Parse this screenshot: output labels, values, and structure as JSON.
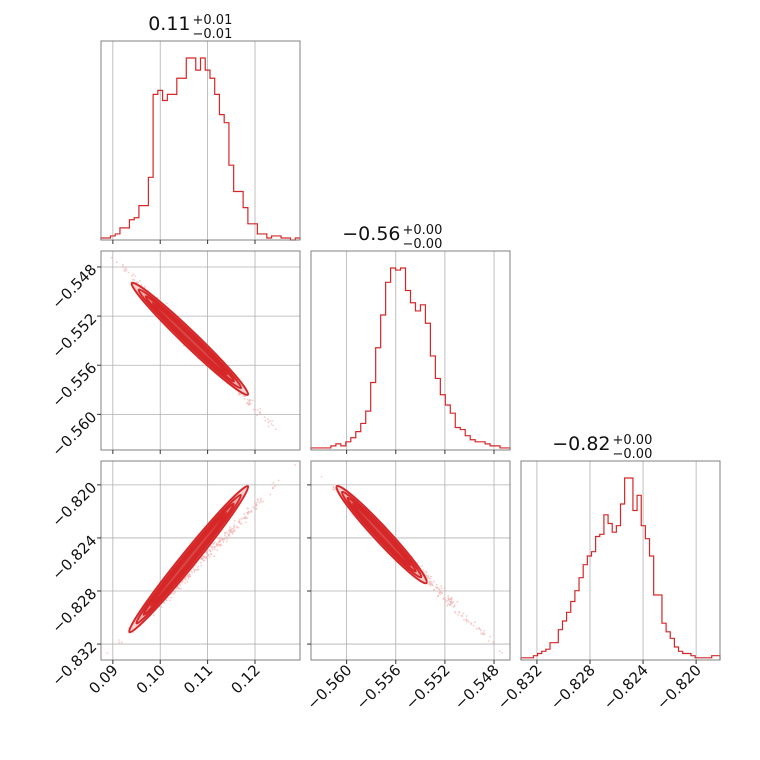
{
  "colors": {
    "main": "#d62728",
    "light": "#f2b6b6",
    "grid": "#b0b0b0",
    "frame": "#808080",
    "text": "#111111"
  },
  "chart_data": {
    "type": "corner",
    "parameters": [
      {
        "title_main": "0.11",
        "title_sup": "+0.01",
        "title_sub": "−0.01",
        "range": [
          0.0875,
          0.1295
        ],
        "ticks": [
          0.09,
          0.1,
          0.11,
          0.12
        ],
        "tick_labels": [
          "0.09",
          "0.10",
          "0.11",
          "0.12"
        ]
      },
      {
        "title_main": "−0.56",
        "title_sup": "+0.00",
        "title_sub": "−0.00",
        "range": [
          -0.5629,
          -0.5467
        ],
        "ticks": [
          -0.56,
          -0.556,
          -0.552,
          -0.548
        ],
        "tick_labels": [
          "−0.560",
          "−0.556",
          "−0.552",
          "−0.548"
        ]
      },
      {
        "title_main": "−0.82",
        "title_sup": "+0.00",
        "title_sub": "−0.00",
        "range": [
          -0.8332,
          -0.8182
        ],
        "ticks": [
          -0.832,
          -0.828,
          -0.824,
          -0.82
        ],
        "tick_labels": [
          "−0.832",
          "−0.828",
          "−0.824",
          "−0.820"
        ]
      }
    ],
    "histograms": [
      {
        "param": 0,
        "counts": [
          1,
          1,
          2,
          3,
          6,
          6,
          10,
          11,
          17,
          17,
          31,
          72,
          74,
          69,
          72,
          72,
          80,
          80,
          90,
          90,
          84,
          90,
          84,
          80,
          72,
          62,
          58,
          37,
          24,
          24,
          16,
          8,
          8,
          3,
          3,
          1,
          2,
          2,
          1,
          1,
          0,
          1
        ]
      },
      {
        "param": 1,
        "counts": [
          1,
          1,
          1,
          1,
          2,
          3,
          2,
          4,
          6,
          9,
          13,
          19,
          33,
          50,
          66,
          82,
          89,
          88,
          89,
          78,
          72,
          68,
          71,
          62,
          46,
          35,
          27,
          22,
          18,
          11,
          10,
          7,
          5,
          4,
          4,
          3,
          2,
          2,
          1,
          1
        ]
      },
      {
        "param": 2,
        "counts": [
          1,
          1,
          1,
          2,
          3,
          4,
          5,
          8,
          8,
          14,
          18,
          22,
          27,
          32,
          38,
          44,
          48,
          50,
          57,
          58,
          67,
          63,
          59,
          62,
          72,
          84,
          84,
          69,
          76,
          62,
          56,
          48,
          30,
          30,
          17,
          13,
          10,
          6,
          4,
          3,
          3,
          2,
          1,
          1,
          1,
          1,
          2,
          2
        ]
      }
    ],
    "scatter_pairs": [
      {
        "x_param": 0,
        "y_param": 1,
        "correlation": -0.95,
        "endpoints": [
          [
            0.0895,
            -0.5469
          ],
          [
            0.1265,
            -0.5621
          ]
        ],
        "core_segment": [
          [
            0.094,
            -0.5493
          ],
          [
            0.1185,
            -0.5584
          ]
        ]
      },
      {
        "x_param": 0,
        "y_param": 2,
        "correlation": 0.98,
        "endpoints": [
          [
            0.0885,
            -0.833
          ],
          [
            0.1285,
            -0.8185
          ]
        ],
        "core_segment": [
          [
            0.0935,
            -0.8311
          ],
          [
            0.1185,
            -0.8201
          ]
        ]
      },
      {
        "x_param": 1,
        "y_param": 2,
        "correlation": -0.99,
        "endpoints": [
          [
            -0.5628,
            -0.8185
          ],
          [
            -0.547,
            -0.833
          ]
        ],
        "core_segment": [
          [
            -0.5608,
            -0.8201
          ],
          [
            -0.5535,
            -0.8274
          ]
        ]
      }
    ],
    "grid": true
  }
}
